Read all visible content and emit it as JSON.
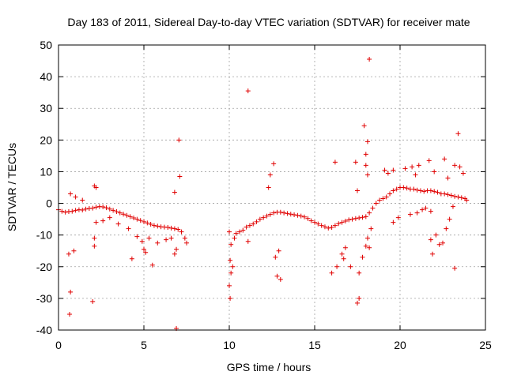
{
  "chart_data": {
    "type": "scatter",
    "title": "Day 183 of 2011, Sidereal Day-to-day VTEC variation (SDTVAR) for receiver mate",
    "xlabel": "GPS time / hours",
    "ylabel": "SDTVAR / TECUs",
    "xlim": [
      0,
      25
    ],
    "ylim": [
      -40,
      50
    ],
    "xticks": [
      0,
      5,
      10,
      15,
      20,
      25
    ],
    "yticks": [
      -40,
      -30,
      -20,
      -10,
      0,
      10,
      20,
      30,
      40,
      50
    ],
    "grid": true,
    "marker": "+",
    "color": "#e00000",
    "series": [
      {
        "name": "SDTVAR",
        "points": [
          [
            0.0,
            -2.0
          ],
          [
            0.2,
            -2.5
          ],
          [
            0.4,
            -2.8
          ],
          [
            0.6,
            -2.6
          ],
          [
            0.8,
            -2.5
          ],
          [
            1.0,
            -2.2
          ],
          [
            1.2,
            -2.0
          ],
          [
            1.4,
            -2.1
          ],
          [
            1.6,
            -1.8
          ],
          [
            1.8,
            -1.6
          ],
          [
            2.0,
            -1.5
          ],
          [
            2.2,
            -1.2
          ],
          [
            2.4,
            -1.0
          ],
          [
            2.6,
            -1.1
          ],
          [
            2.8,
            -1.4
          ],
          [
            3.0,
            -1.8
          ],
          [
            3.2,
            -2.2
          ],
          [
            3.4,
            -2.6
          ],
          [
            3.6,
            -3.0
          ],
          [
            3.8,
            -3.4
          ],
          [
            4.0,
            -3.8
          ],
          [
            4.2,
            -4.2
          ],
          [
            4.4,
            -4.6
          ],
          [
            4.6,
            -5.0
          ],
          [
            4.8,
            -5.4
          ],
          [
            5.0,
            -5.8
          ],
          [
            5.2,
            -6.2
          ],
          [
            5.4,
            -6.6
          ],
          [
            5.6,
            -7.0
          ],
          [
            5.8,
            -7.2
          ],
          [
            6.0,
            -7.4
          ],
          [
            6.2,
            -7.5
          ],
          [
            6.4,
            -7.6
          ],
          [
            6.6,
            -7.8
          ],
          [
            6.8,
            -8.0
          ],
          [
            7.0,
            -8.2
          ],
          [
            7.2,
            -9.0
          ],
          [
            7.4,
            -11.0
          ],
          [
            7.5,
            -12.5
          ],
          [
            0.6,
            -16
          ],
          [
            0.7,
            -28
          ],
          [
            0.65,
            -35
          ],
          [
            0.9,
            -15
          ],
          [
            2.1,
            -11
          ],
          [
            2.1,
            -13.5
          ],
          [
            2.0,
            -31
          ],
          [
            2.1,
            5.5
          ],
          [
            2.2,
            5.0
          ],
          [
            4.3,
            -17.5
          ],
          [
            5.0,
            -14.5
          ],
          [
            5.1,
            -15.5
          ],
          [
            5.5,
            -19.5
          ],
          [
            6.8,
            -16
          ],
          [
            6.9,
            -14.5
          ],
          [
            6.8,
            3.5
          ],
          [
            6.9,
            -39.5
          ],
          [
            7.05,
            20
          ],
          [
            7.1,
            8.5
          ],
          [
            0.7,
            3.0
          ],
          [
            1.0,
            2.0
          ],
          [
            1.4,
            1.0
          ],
          [
            2.2,
            -6.0
          ],
          [
            2.6,
            -5.5
          ],
          [
            3.0,
            -4.5
          ],
          [
            3.5,
            -6.5
          ],
          [
            4.1,
            -8.0
          ],
          [
            4.6,
            -10.5
          ],
          [
            4.9,
            -12.0
          ],
          [
            5.3,
            -11.0
          ],
          [
            5.8,
            -12.5
          ],
          [
            6.3,
            -11.5
          ],
          [
            6.6,
            -11.0
          ],
          [
            10.0,
            -9.0
          ],
          [
            10.1,
            -13.0
          ],
          [
            10.05,
            -18.0
          ],
          [
            10.1,
            -22.0
          ],
          [
            10.2,
            -20.0
          ],
          [
            10.0,
            -26.0
          ],
          [
            10.05,
            -30.0
          ],
          [
            10.3,
            -11.0
          ],
          [
            10.4,
            -9.5
          ],
          [
            10.6,
            -9.0
          ],
          [
            10.8,
            -8.5
          ],
          [
            11.0,
            -7.5
          ],
          [
            11.2,
            -7.0
          ],
          [
            11.4,
            -6.5
          ],
          [
            11.6,
            -5.8
          ],
          [
            11.8,
            -5.0
          ],
          [
            12.0,
            -4.5
          ],
          [
            12.2,
            -4.0
          ],
          [
            12.4,
            -3.5
          ],
          [
            12.6,
            -3.0
          ],
          [
            12.8,
            -2.8
          ],
          [
            13.0,
            -2.8
          ],
          [
            13.2,
            -3.0
          ],
          [
            13.4,
            -3.2
          ],
          [
            13.6,
            -3.4
          ],
          [
            13.8,
            -3.6
          ],
          [
            14.0,
            -3.8
          ],
          [
            14.2,
            -4.0
          ],
          [
            14.4,
            -4.3
          ],
          [
            14.6,
            -4.8
          ],
          [
            14.8,
            -5.5
          ],
          [
            15.0,
            -6.0
          ],
          [
            15.2,
            -6.5
          ],
          [
            15.4,
            -7.0
          ],
          [
            15.6,
            -7.4
          ],
          [
            15.8,
            -7.8
          ],
          [
            16.0,
            -7.6
          ],
          [
            16.2,
            -7.0
          ],
          [
            16.4,
            -6.4
          ],
          [
            16.6,
            -6.0
          ],
          [
            16.8,
            -5.6
          ],
          [
            17.0,
            -5.2
          ],
          [
            17.2,
            -5.0
          ],
          [
            17.4,
            -4.8
          ],
          [
            17.6,
            -4.6
          ],
          [
            17.8,
            -4.4
          ],
          [
            18.0,
            -4.2
          ],
          [
            18.2,
            -3.0
          ],
          [
            18.4,
            -1.5
          ],
          [
            18.6,
            0.0
          ],
          [
            18.8,
            1.0
          ],
          [
            19.0,
            1.5
          ],
          [
            19.2,
            2.0
          ],
          [
            19.4,
            3.0
          ],
          [
            19.6,
            4.0
          ],
          [
            19.8,
            4.5
          ],
          [
            20.0,
            5.0
          ],
          [
            20.2,
            5.0
          ],
          [
            20.4,
            4.8
          ],
          [
            20.6,
            4.5
          ],
          [
            20.8,
            4.5
          ],
          [
            21.0,
            4.2
          ],
          [
            21.2,
            4.0
          ],
          [
            21.4,
            3.8
          ],
          [
            21.6,
            4.0
          ],
          [
            21.8,
            4.0
          ],
          [
            22.0,
            3.8
          ],
          [
            22.2,
            3.5
          ],
          [
            22.4,
            3.0
          ],
          [
            22.6,
            3.0
          ],
          [
            22.8,
            2.8
          ],
          [
            23.0,
            2.5
          ],
          [
            23.2,
            2.2
          ],
          [
            23.4,
            2.0
          ],
          [
            23.6,
            1.8
          ],
          [
            23.8,
            1.5
          ],
          [
            23.9,
            1.0
          ],
          [
            11.1,
            35.5
          ],
          [
            11.1,
            -12.0
          ],
          [
            12.3,
            5.0
          ],
          [
            12.4,
            9.0
          ],
          [
            12.6,
            12.5
          ],
          [
            12.7,
            -17.0
          ],
          [
            12.8,
            -23.0
          ],
          [
            13.0,
            -24.0
          ],
          [
            12.9,
            -15.0
          ],
          [
            16.2,
            13.0
          ],
          [
            16.0,
            -22.0
          ],
          [
            16.3,
            -20.0
          ],
          [
            16.6,
            -16.0
          ],
          [
            16.8,
            -14.0
          ],
          [
            16.7,
            -17.5
          ],
          [
            17.4,
            13.0
          ],
          [
            17.5,
            4.0
          ],
          [
            17.1,
            -20.0
          ],
          [
            17.5,
            -31.5
          ],
          [
            17.6,
            -30.0
          ],
          [
            17.6,
            -22.0
          ],
          [
            17.8,
            -17.0
          ],
          [
            18.0,
            -13.5
          ],
          [
            18.2,
            -14.0
          ],
          [
            18.1,
            -11.0
          ],
          [
            17.9,
            24.5
          ],
          [
            18.2,
            45.5
          ],
          [
            18.1,
            19.5
          ],
          [
            18.0,
            15.5
          ],
          [
            18.0,
            12.0
          ],
          [
            18.1,
            9.0
          ],
          [
            18.3,
            -8.0
          ],
          [
            19.1,
            10.5
          ],
          [
            19.3,
            9.5
          ],
          [
            19.6,
            10.5
          ],
          [
            19.6,
            -6.0
          ],
          [
            19.9,
            -4.5
          ],
          [
            20.3,
            11.0
          ],
          [
            20.6,
            -3.5
          ],
          [
            21.0,
            -3.0
          ],
          [
            21.3,
            -2.0
          ],
          [
            21.5,
            -1.5
          ],
          [
            21.8,
            -2.5
          ],
          [
            21.8,
            -11.5
          ],
          [
            21.9,
            -16.0
          ],
          [
            22.1,
            -10.0
          ],
          [
            22.3,
            -13.0
          ],
          [
            22.5,
            -12.5
          ],
          [
            22.7,
            -8.0
          ],
          [
            22.9,
            -5.0
          ],
          [
            23.1,
            -1.0
          ],
          [
            23.2,
            -20.5
          ],
          [
            23.4,
            22.0
          ],
          [
            23.2,
            12.0
          ],
          [
            23.5,
            11.5
          ],
          [
            23.7,
            9.5
          ],
          [
            22.6,
            14.0
          ],
          [
            21.7,
            13.5
          ],
          [
            21.1,
            12.0
          ],
          [
            20.7,
            11.5
          ],
          [
            20.9,
            9.0
          ],
          [
            22.0,
            10.0
          ],
          [
            22.8,
            8.0
          ]
        ]
      }
    ]
  }
}
